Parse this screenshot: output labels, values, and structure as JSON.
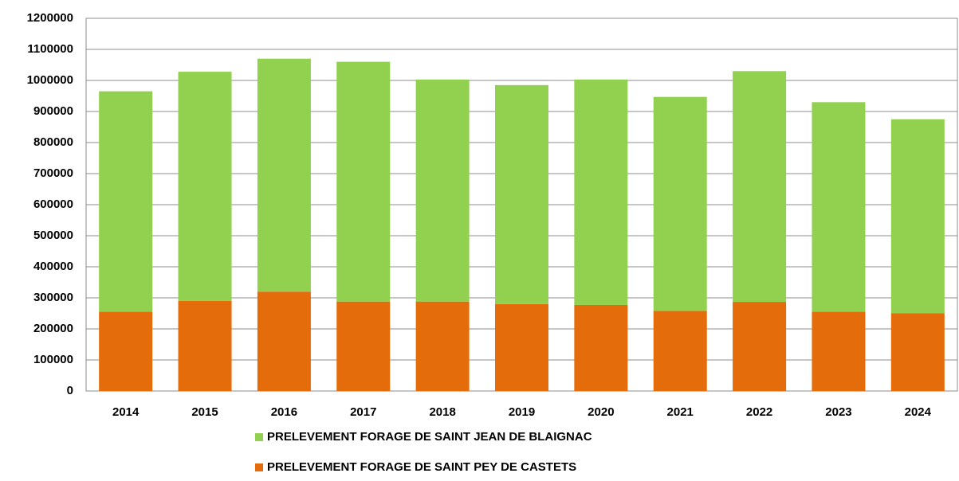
{
  "chart_data": {
    "type": "stacked_bar",
    "categories": [
      "2014",
      "2015",
      "2016",
      "2017",
      "2018",
      "2019",
      "2020",
      "2021",
      "2022",
      "2023",
      "2024"
    ],
    "series": [
      {
        "name": "PRELEVEMENT FORAGE DE SAINT JEAN DE BLAIGNAC",
        "color": "#92d050",
        "values": [
          710000,
          738000,
          750000,
          772000,
          715000,
          705000,
          726000,
          689000,
          743000,
          675000,
          625000
        ]
      },
      {
        "name": "PRELEVEMENT FORAGE DE SAINT PEY DE CASTETS",
        "color": "#e46c0a",
        "values": [
          255000,
          290000,
          320000,
          288000,
          288000,
          280000,
          277000,
          258000,
          287000,
          255000,
          250000
        ]
      }
    ],
    "ylim": [
      0,
      1200000
    ],
    "yticks": [
      0,
      100000,
      200000,
      300000,
      400000,
      500000,
      600000,
      700000,
      800000,
      900000,
      1000000,
      1100000,
      1200000
    ],
    "grid": true
  }
}
